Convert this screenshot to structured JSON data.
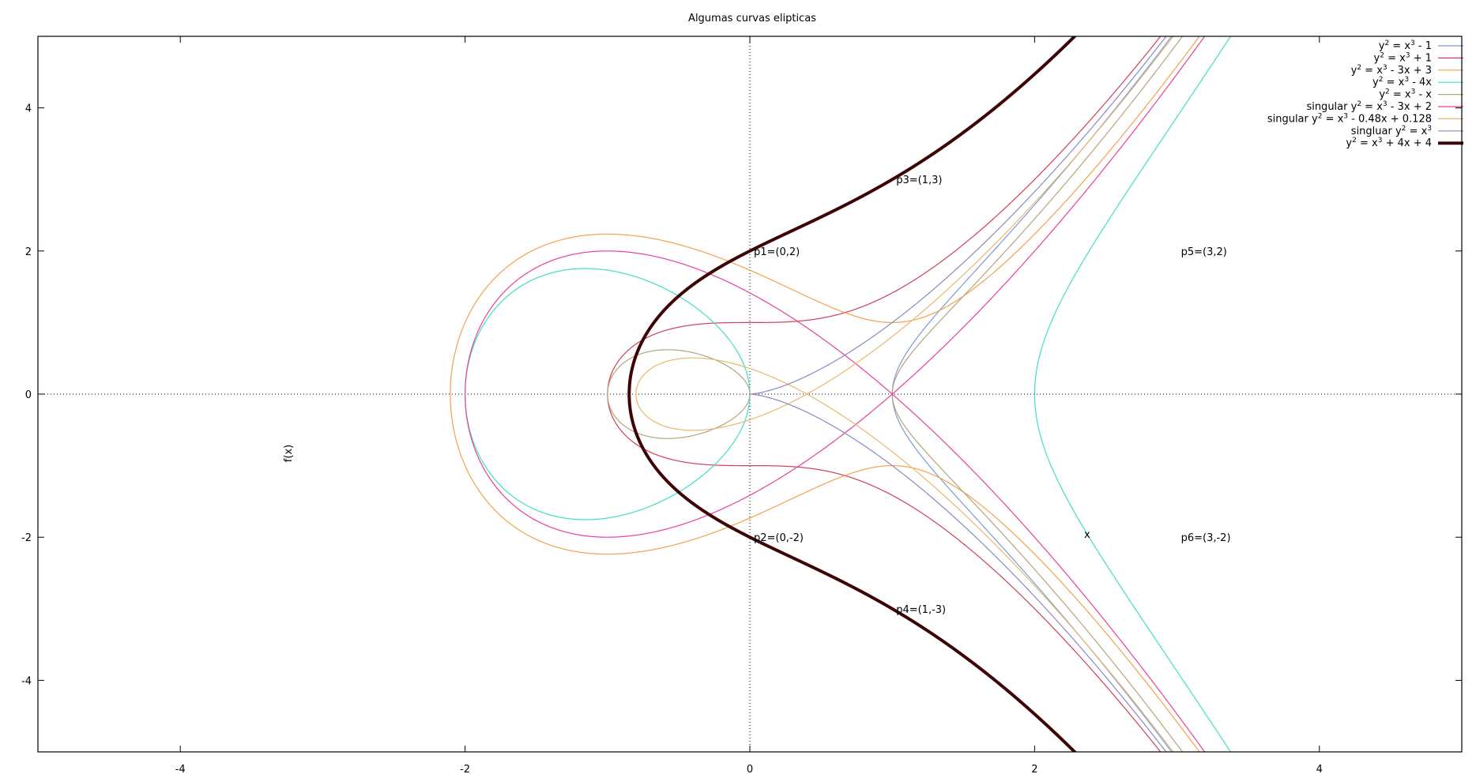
{
  "chart_data": {
    "type": "line",
    "title": "Algumas curvas elipticas",
    "xlabel": "x",
    "ylabel": "f(x)",
    "xlim": [
      -5,
      5
    ],
    "ylim": [
      -5,
      5
    ],
    "xticks": [
      -4,
      -2,
      0,
      2,
      4
    ],
    "yticks": [
      -4,
      -2,
      0,
      2,
      4
    ],
    "zero_axes": true,
    "legend_position": "top-right",
    "series": [
      {
        "name": "y2 = x3 - 1",
        "label_parts": [
          "y",
          "2",
          " = x",
          "3",
          " - 1"
        ],
        "coeffs": [
          0,
          -1
        ],
        "color": "#7b9bd8",
        "width": 1.2
      },
      {
        "name": "y2 = x3 + 1",
        "label_parts": [
          "y",
          "2",
          " = x",
          "3",
          " + 1"
        ],
        "coeffs": [
          0,
          1
        ],
        "color": "#d0405a",
        "width": 1.2
      },
      {
        "name": "y2 = x3 - 3x + 3",
        "label_parts": [
          "y",
          "2",
          " = x",
          "3",
          " - 3x + 3"
        ],
        "coeffs": [
          -3,
          3
        ],
        "color": "#f2a24e",
        "width": 1.2
      },
      {
        "name": "y2 = x3 - 4x",
        "label_parts": [
          "y",
          "2",
          " = x",
          "3",
          " - 4x"
        ],
        "coeffs": [
          -4,
          0
        ],
        "color": "#3fe0c5",
        "width": 1.2
      },
      {
        "name": "y2 = x3 - x",
        "label_parts": [
          "y",
          "2",
          " = x",
          "3",
          " - x"
        ],
        "coeffs": [
          -1,
          0
        ],
        "color": "#b5a57a",
        "width": 1.2
      },
      {
        "name": "singular y2 = x3 - 3x + 2",
        "label_parts": [
          "singular y",
          "2",
          " = x",
          "3",
          " - 3x + 2"
        ],
        "coeffs": [
          -3,
          2
        ],
        "color": "#e8409a",
        "width": 1.2
      },
      {
        "name": "singular y2 = x3 - 0.48x + 0.128",
        "label_parts": [
          "singular y",
          "2",
          " = x",
          "3",
          " - 0.48x + 0.128"
        ],
        "coeffs": [
          -0.48,
          0.128
        ],
        "color": "#e8b870",
        "width": 1.2
      },
      {
        "name": "singluar y2 = x3",
        "label_parts": [
          "singluar y",
          "2",
          " = x",
          "3",
          ""
        ],
        "coeffs": [
          0,
          0
        ],
        "color": "#8a8ac0",
        "width": 1.2
      },
      {
        "name": "y2 = x3 + 4x + 4",
        "label_parts": [
          "y",
          "2",
          " = x",
          "3",
          " + 4x + 4"
        ],
        "coeffs": [
          4,
          4
        ],
        "color": "#3d0505",
        "width": 4
      }
    ],
    "annotations": [
      {
        "text": "p1=(0,2)",
        "x": 0,
        "y": 2
      },
      {
        "text": "p2=(0,-2)",
        "x": 0,
        "y": -2
      },
      {
        "text": "p3=(1,3)",
        "x": 1,
        "y": 3
      },
      {
        "text": "p4=(1,-3)",
        "x": 1,
        "y": -3
      },
      {
        "text": "p5=(3,2)",
        "x": 3,
        "y": 2
      },
      {
        "text": "p6=(3,-2)",
        "x": 3,
        "y": -2
      }
    ]
  }
}
